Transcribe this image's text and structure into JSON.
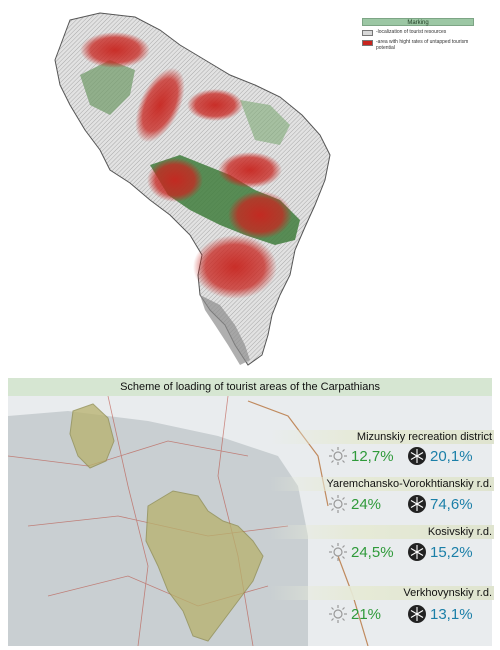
{
  "legend": {
    "title": "Marking",
    "items": [
      {
        "color": "#d8d8d8",
        "label": "-localization of tourist resources"
      },
      {
        "color": "#c8251f",
        "label": "-area with hight rates of untapped tourism potential"
      }
    ]
  },
  "scheme": {
    "title": "Scheme of loading of tourist areas of the Carpathians",
    "districts": [
      {
        "name": "Mizunskiy recreation district",
        "summer": "12,7%",
        "winter": "20,1%"
      },
      {
        "name": "Yaremchansko-Vorokhtianskiy r.d.",
        "summer": "24%",
        "winter": "74,6%"
      },
      {
        "name": "Kosivskiy r.d.",
        "summer": "24,5%",
        "winter": "15,2%"
      },
      {
        "name": "Verkhovynskiy r.d.",
        "summer": "21%",
        "winter": "13,1%"
      }
    ]
  },
  "icons": {
    "summer": "sun-icon",
    "winter": "snowflake-icon"
  },
  "colors": {
    "summer": "#2f9a3a",
    "winter": "#1b7fa8",
    "hotspot": "#c8251f",
    "forest": "#3f7d3c",
    "district_fill": "#b7b16c"
  }
}
